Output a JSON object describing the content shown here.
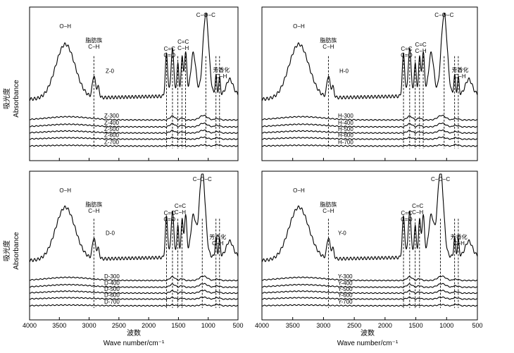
{
  "chart_data": {
    "type": "line",
    "x_axis": {
      "label_cn": "波数",
      "label_en": "Wave number/cm⁻¹",
      "range": [
        4000,
        500
      ],
      "reversed": true,
      "ticks": [
        4000,
        3500,
        3000,
        2500,
        2000,
        1500,
        1000,
        500
      ]
    },
    "y_axis": {
      "label_cn": "吸光度",
      "label_en": "Absorbance"
    },
    "panels": [
      {
        "prefix": "Z",
        "series": [
          {
            "name": "Z-0",
            "label": "Z-0"
          },
          {
            "name": "Z-300",
            "label": "Z-300"
          },
          {
            "name": "Z-400",
            "label": "Z-400"
          },
          {
            "name": "Z-500",
            "label": "Z-500"
          },
          {
            "name": "Z-600",
            "label": "Z-600"
          },
          {
            "name": "Z-700",
            "label": "Z-700"
          }
        ],
        "peak_lines": [
          2920,
          1700,
          1600,
          1510,
          1440,
          1380,
          1040,
          870,
          810
        ],
        "annotations": [
          {
            "text": "O−H",
            "x": 3400
          },
          {
            "text": "脂肪族",
            "x": 2920
          },
          {
            "text": "C−H",
            "x": 2920
          },
          {
            "text": "C=C",
            "x": 1650
          },
          {
            "text": "C=O",
            "x": 1650
          },
          {
            "text": "C=C",
            "x": 1420
          },
          {
            "text": "C−H",
            "x": 1420
          },
          {
            "text": "C−O−C",
            "x": 1040
          },
          {
            "text": "芳香化",
            "x": 780
          },
          {
            "text": "C−H",
            "x": 780
          }
        ]
      },
      {
        "prefix": "H",
        "series": [
          {
            "name": "H-0",
            "label": "H-0"
          },
          {
            "name": "H-300",
            "label": "H-300"
          },
          {
            "name": "H-400",
            "label": "H-400"
          },
          {
            "name": "H-500",
            "label": "H-500"
          },
          {
            "name": "H-600",
            "label": "H-600"
          },
          {
            "name": "H-700",
            "label": "H-700"
          }
        ],
        "peak_lines": [
          2920,
          1700,
          1600,
          1510,
          1440,
          1380,
          1040,
          870,
          810
        ],
        "annotations": [
          {
            "text": "O−H",
            "x": 3400
          },
          {
            "text": "脂肪族",
            "x": 2920
          },
          {
            "text": "C−H",
            "x": 2920
          },
          {
            "text": "C=C",
            "x": 1650
          },
          {
            "text": "C=O",
            "x": 1650
          },
          {
            "text": "C=C",
            "x": 1420
          },
          {
            "text": "C−H",
            "x": 1420
          },
          {
            "text": "C−O−C",
            "x": 1040
          },
          {
            "text": "芳香化",
            "x": 780
          },
          {
            "text": "C−H",
            "x": 780
          }
        ]
      },
      {
        "prefix": "D",
        "series": [
          {
            "name": "D-0",
            "label": "D-0"
          },
          {
            "name": "D-300",
            "label": "D-300"
          },
          {
            "name": "D-400",
            "label": "D-400"
          },
          {
            "name": "D-500",
            "label": "D-500"
          },
          {
            "name": "D-600",
            "label": "D-600"
          },
          {
            "name": "D-700",
            "label": "D-700"
          }
        ],
        "peak_lines": [
          2920,
          1700,
          1600,
          1510,
          1440,
          1100,
          870,
          810
        ],
        "annotations": [
          {
            "text": "O−H",
            "x": 3400
          },
          {
            "text": "脂肪族",
            "x": 2920
          },
          {
            "text": "C−H",
            "x": 2920
          },
          {
            "text": "C=C",
            "x": 1650
          },
          {
            "text": "C=O",
            "x": 1650
          },
          {
            "text": "C=C",
            "x": 1470
          },
          {
            "text": "C−H",
            "x": 1470
          },
          {
            "text": "C−O−C",
            "x": 1100
          },
          {
            "text": "芳香化",
            "x": 840
          },
          {
            "text": "C−H",
            "x": 840
          }
        ]
      },
      {
        "prefix": "Y",
        "series": [
          {
            "name": "Y-0",
            "label": "Y-0"
          },
          {
            "name": "Y-300",
            "label": "Y-300"
          },
          {
            "name": "Y-400",
            "label": "Y-400"
          },
          {
            "name": "Y-500",
            "label": "Y-500"
          },
          {
            "name": "Y-600",
            "label": "Y-600"
          },
          {
            "name": "Y-700",
            "label": "Y-700"
          }
        ],
        "peak_lines": [
          2920,
          1700,
          1600,
          1510,
          1440,
          1100,
          870,
          810
        ],
        "annotations": [
          {
            "text": "O−H",
            "x": 3400
          },
          {
            "text": "脂肪族",
            "x": 2920
          },
          {
            "text": "C−H",
            "x": 2920
          },
          {
            "text": "C=C",
            "x": 1650
          },
          {
            "text": "C=O",
            "x": 1650
          },
          {
            "text": "C=C",
            "x": 1470
          },
          {
            "text": "C−H",
            "x": 1470
          },
          {
            "text": "C−O−C",
            "x": 1100
          },
          {
            "text": "芳香化",
            "x": 800
          },
          {
            "text": "C−H",
            "x": 800
          }
        ]
      }
    ]
  }
}
